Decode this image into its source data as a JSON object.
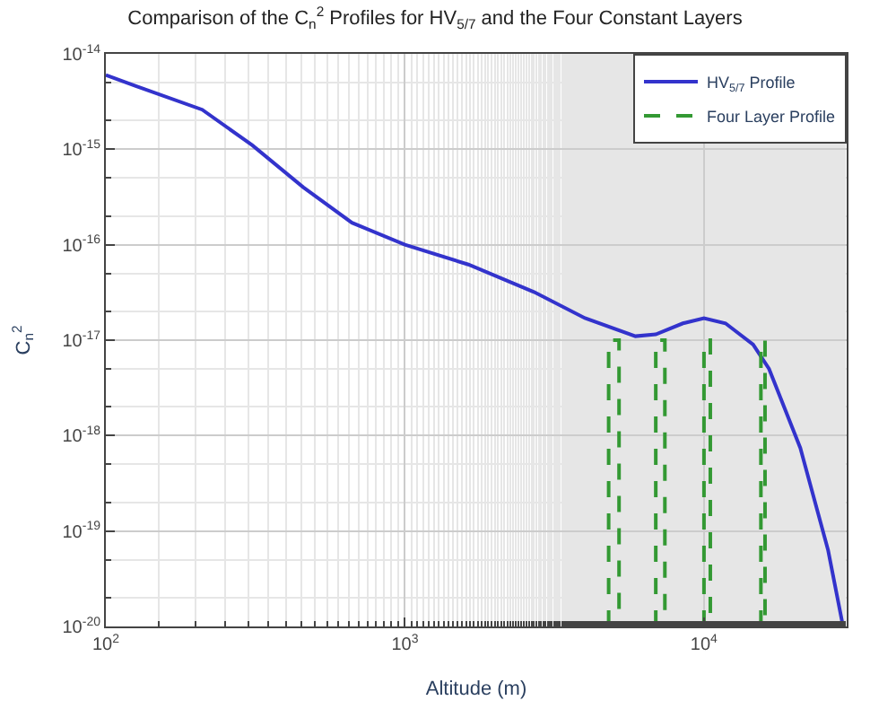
{
  "chart_data": {
    "type": "line",
    "title": "Comparison of the C$_{n}$$^{2}$ Profiles for HV$_{5/7}$ and the Four Constant Layers",
    "xlabel": "Altitude (m)",
    "ylabel": "C$_{n}$$^{2}$",
    "log": "xy",
    "grid": true,
    "legend": "top right",
    "marker": "none",
    "xlim": [
      100,
      30000
    ],
    "ylim": [
      1e-20,
      1e-14
    ],
    "xticks": [
      {
        "value": 100,
        "label": "10$^{2}$"
      },
      {
        "value": 1000,
        "label": "10$^{3}$"
      },
      {
        "value": 10000,
        "label": "10$^{4}$"
      }
    ],
    "yticks": [
      {
        "value": 1e-20,
        "label": "10$^{-20}$"
      },
      {
        "value": 1e-19,
        "label": "10$^{-19}$"
      },
      {
        "value": 1e-18,
        "label": "10$^{-18}$"
      },
      {
        "value": 1e-17,
        "label": "10$^{-17}$"
      },
      {
        "value": 1e-16,
        "label": "10$^{-16}$"
      },
      {
        "value": 1e-15,
        "label": "10$^{-15}$"
      },
      {
        "value": 1e-14,
        "label": "10$^{-14}$"
      }
    ],
    "series": [
      {
        "name": "HV$_{5/7}$ Profile",
        "color": "#3333cc",
        "line_style": "solid",
        "x": [
          100,
          126,
          210,
          309,
          457,
          665,
          1000,
          1630,
          2700,
          4000,
          5900,
          6900,
          8500,
          10000,
          11800,
          14600,
          16500,
          21000,
          26000,
          29000
        ],
        "values": [
          6e-15,
          4.6e-15,
          2.6e-15,
          1.1e-15,
          4e-16,
          1.7e-16,
          1e-16,
          6.2e-17,
          3.2e-17,
          1.7e-17,
          1.1e-17,
          1.15e-17,
          1.5e-17,
          1.7e-17,
          1.5e-17,
          9e-18,
          5e-18,
          7.4e-19,
          6.3e-20,
          1.1e-20
        ]
      },
      {
        "name": "Four Layer Profile",
        "color": "#339933",
        "line_style": "dashed",
        "x": [
          4800,
          4800,
          5200,
          5200,
          null,
          6900,
          6900,
          7400,
          7400,
          null,
          10000,
          10000,
          10500,
          10500,
          null,
          15500,
          15500,
          16000,
          16000
        ],
        "values": [
          1e-20,
          1e-17,
          1e-17,
          1e-20,
          null,
          1e-20,
          1e-17,
          1e-17,
          1e-20,
          null,
          1e-20,
          1e-17,
          1e-17,
          1e-20,
          null,
          1e-20,
          1e-17,
          1e-17,
          1e-20
        ]
      }
    ]
  }
}
